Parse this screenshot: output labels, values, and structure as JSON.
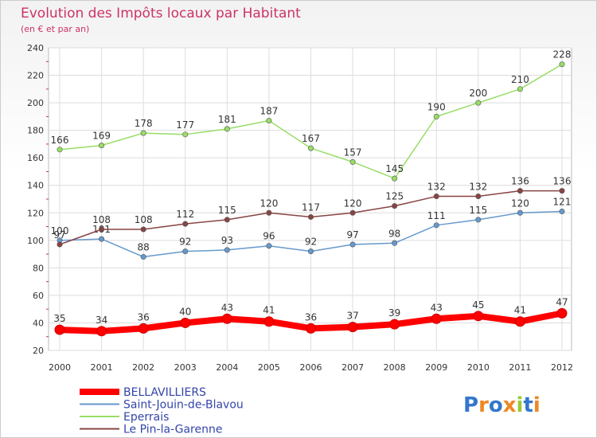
{
  "title": "Evolution des Impôts locaux par Habitant",
  "subtitle": "(en € et par an)",
  "logo_text": "Proxiti",
  "chart_data": {
    "type": "line",
    "title": "Evolution des Impôts locaux par Habitant",
    "subtitle": "(en € et par an)",
    "x": [
      "2000",
      "2001",
      "2002",
      "2003",
      "2004",
      "2005",
      "2006",
      "2007",
      "2008",
      "2009",
      "2010",
      "2011",
      "2012"
    ],
    "ylim": [
      20,
      240
    ],
    "yticks": [
      20,
      40,
      60,
      80,
      100,
      120,
      140,
      160,
      180,
      200,
      220,
      240
    ],
    "grid": true,
    "legend_position": "bottom-left",
    "series": [
      {
        "name": "BELLAVILLIERS",
        "color": "#ff0000",
        "values": [
          35,
          34,
          36,
          40,
          43,
          41,
          36,
          37,
          39,
          43,
          45,
          41,
          47
        ]
      },
      {
        "name": "Saint-Jouin-de-Blavou",
        "color": "#6699cc",
        "values": [
          100,
          101,
          88,
          92,
          93,
          96,
          92,
          97,
          98,
          111,
          115,
          120,
          121
        ]
      },
      {
        "name": "Eperrais",
        "color": "#99dd66",
        "values": [
          166,
          169,
          178,
          177,
          181,
          187,
          167,
          157,
          145,
          190,
          200,
          210,
          228
        ]
      },
      {
        "name": "Le Pin-la-Garenne",
        "color": "#884444",
        "values": [
          97,
          108,
          108,
          112,
          115,
          120,
          117,
          120,
          125,
          132,
          132,
          136,
          136
        ]
      }
    ]
  }
}
